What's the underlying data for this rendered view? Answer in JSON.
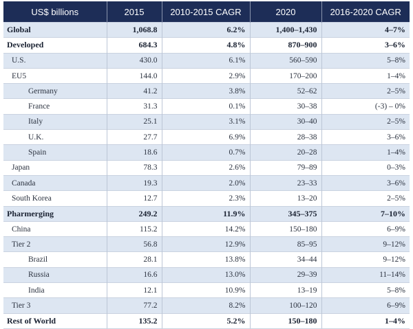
{
  "table": {
    "headers": [
      "US$ billions",
      "2015",
      "2010-2015 CAGR",
      "2020",
      "2016-2020 CAGR"
    ],
    "rows": [
      {
        "label": "Global",
        "v2015": "1,068.8",
        "cagr1015": "6.2%",
        "v2020": "1,400–1,430",
        "cagr1620": "4–7%",
        "level": 0,
        "bold": true
      },
      {
        "label": "Developed",
        "v2015": "684.3",
        "cagr1015": "4.8%",
        "v2020": "870–900",
        "cagr1620": "3–6%",
        "level": 0,
        "bold": true
      },
      {
        "label": "U.S.",
        "v2015": "430.0",
        "cagr1015": "6.1%",
        "v2020": "560–590",
        "cagr1620": "5–8%",
        "level": 1,
        "bold": false
      },
      {
        "label": "EU5",
        "v2015": "144.0",
        "cagr1015": "2.9%",
        "v2020": "170–200",
        "cagr1620": "1–4%",
        "level": 1,
        "bold": false
      },
      {
        "label": "Germany",
        "v2015": "41.2",
        "cagr1015": "3.8%",
        "v2020": "52–62",
        "cagr1620": "2–5%",
        "level": 2,
        "bold": false
      },
      {
        "label": "France",
        "v2015": "31.3",
        "cagr1015": "0.1%",
        "v2020": "30–38",
        "cagr1620": "(-3) – 0%",
        "level": 2,
        "bold": false
      },
      {
        "label": "Italy",
        "v2015": "25.1",
        "cagr1015": "3.1%",
        "v2020": "30–40",
        "cagr1620": "2–5%",
        "level": 2,
        "bold": false
      },
      {
        "label": "U.K.",
        "v2015": "27.7",
        "cagr1015": "6.9%",
        "v2020": "28–38",
        "cagr1620": "3–6%",
        "level": 2,
        "bold": false
      },
      {
        "label": "Spain",
        "v2015": "18.6",
        "cagr1015": "0.7%",
        "v2020": "20–28",
        "cagr1620": "1–4%",
        "level": 2,
        "bold": false
      },
      {
        "label": "Japan",
        "v2015": "78.3",
        "cagr1015": "2.6%",
        "v2020": "79–89",
        "cagr1620": "0–3%",
        "level": 1,
        "bold": false
      },
      {
        "label": "Canada",
        "v2015": "19.3",
        "cagr1015": "2.0%",
        "v2020": "23–33",
        "cagr1620": "3–6%",
        "level": 1,
        "bold": false
      },
      {
        "label": "South Korea",
        "v2015": "12.7",
        "cagr1015": "2.3%",
        "v2020": "13–20",
        "cagr1620": "2–5%",
        "level": 1,
        "bold": false
      },
      {
        "label": "Pharmerging",
        "v2015": "249.2",
        "cagr1015": "11.9%",
        "v2020": "345–375",
        "cagr1620": "7–10%",
        "level": 0,
        "bold": true
      },
      {
        "label": "China",
        "v2015": "115.2",
        "cagr1015": "14.2%",
        "v2020": "150–180",
        "cagr1620": "6–9%",
        "level": 1,
        "bold": false
      },
      {
        "label": "Tier 2",
        "v2015": "56.8",
        "cagr1015": "12.9%",
        "v2020": "85–95",
        "cagr1620": "9–12%",
        "level": 1,
        "bold": false
      },
      {
        "label": "Brazil",
        "v2015": "28.1",
        "cagr1015": "13.8%",
        "v2020": "34–44",
        "cagr1620": "9–12%",
        "level": 2,
        "bold": false
      },
      {
        "label": "Russia",
        "v2015": "16.6",
        "cagr1015": "13.0%",
        "v2020": "29–39",
        "cagr1620": "11–14%",
        "level": 2,
        "bold": false
      },
      {
        "label": "India",
        "v2015": "12.1",
        "cagr1015": "10.9%",
        "v2020": "13–19",
        "cagr1620": "5–8%",
        "level": 2,
        "bold": false
      },
      {
        "label": "Tier 3",
        "v2015": "77.2",
        "cagr1015": "8.2%",
        "v2020": "100–120",
        "cagr1620": "6–9%",
        "level": 1,
        "bold": false
      },
      {
        "label": "Rest of World",
        "v2015": "135.2",
        "cagr1015": "5.2%",
        "v2020": "150–180",
        "cagr1620": "1–4%",
        "level": 0,
        "bold": true
      }
    ]
  },
  "colors": {
    "header_bg": "#1d2d57",
    "header_text": "#ffffff",
    "row_stripe": "#dde6f2",
    "row_plain": "#ffffff"
  }
}
